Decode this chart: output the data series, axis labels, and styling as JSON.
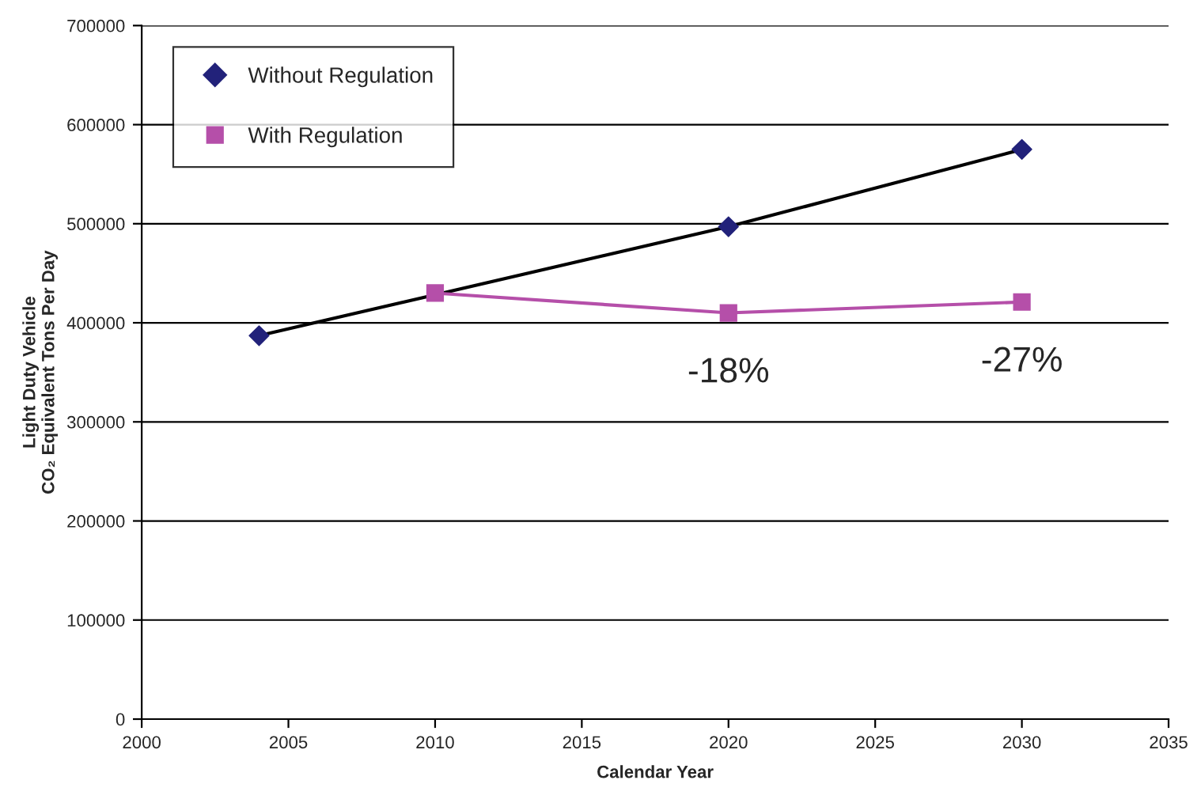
{
  "chart_data": {
    "type": "line",
    "xlabel": "Calendar Year",
    "ylabel": "Light Duty Vehicle\nCO₂ Equivalent Tons Per Day",
    "series": [
      {
        "name": "Without Regulation",
        "type": "scatter",
        "marker": "diamond",
        "color": "#22227a",
        "x": [
          2004,
          2020,
          2030
        ],
        "values": [
          387000,
          497000,
          575000
        ]
      },
      {
        "marker": "none",
        "color": "#000000",
        "x": [
          2004,
          2020,
          2030
        ],
        "values": [
          387000,
          497000,
          575000
        ]
      },
      {
        "name": "With Regulation",
        "type": "line",
        "marker": "square",
        "color": "#b54fa9",
        "x": [
          2010,
          2020,
          2030
        ],
        "values": [
          430000,
          410000,
          421000
        ]
      }
    ],
    "xlim": [
      2000,
      2035
    ],
    "xticks": [
      2000,
      2005,
      2010,
      2015,
      2020,
      2025,
      2030,
      2035
    ],
    "ylim": [
      0,
      700000
    ],
    "yticks": [
      0,
      100000,
      200000,
      300000,
      400000,
      500000,
      600000,
      700000
    ],
    "grid": "y",
    "legend": "top left",
    "annotations": [
      {
        "text": "-18%",
        "x": 2020,
        "y": 410000
      },
      {
        "text": "-27%",
        "x": 2030,
        "y": 421000
      }
    ]
  }
}
